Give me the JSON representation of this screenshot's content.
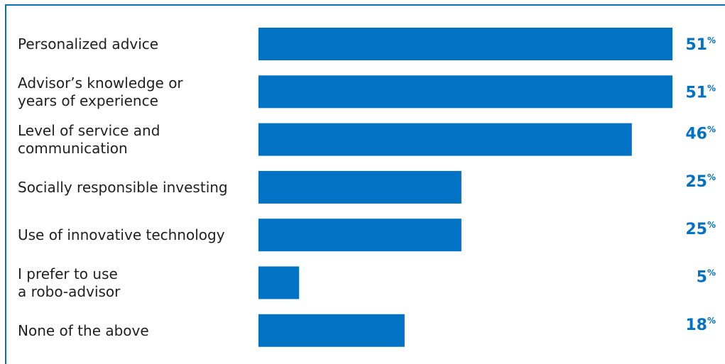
{
  "colors": {
    "bar": "#0272c4",
    "value_text": "#0272c4",
    "frame": "#0b6fb5",
    "label_text": "#1f1f1f"
  },
  "chart_data": {
    "type": "bar",
    "orientation": "horizontal",
    "categories": [
      [
        "Personalized advice"
      ],
      [
        "Advisor’s knowledge or",
        "years of experience"
      ],
      [
        "Level of service and",
        "communication"
      ],
      [
        "Socially responsible investing"
      ],
      [
        "Use of innovative technology"
      ],
      [
        "I prefer to use",
        "a robo-advisor"
      ],
      [
        "None of the above"
      ]
    ],
    "values": [
      51,
      51,
      46,
      25,
      25,
      5,
      18
    ],
    "value_labels": [
      "51",
      "51",
      "46",
      "25",
      "25",
      "5",
      "18"
    ],
    "value_suffix": "%",
    "xlim": [
      0,
      51
    ],
    "grid": false,
    "legend": "none"
  }
}
